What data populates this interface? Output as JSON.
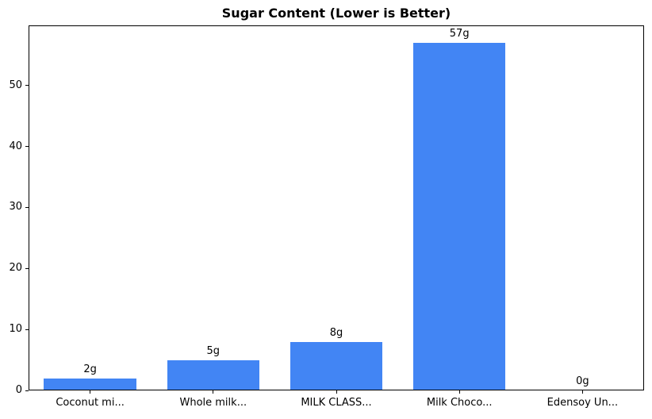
{
  "chart_data": {
    "type": "bar",
    "title": "Sugar Content (Lower is Better)",
    "categories": [
      "Coconut mi...",
      "Whole milk...",
      "MILK CLASS...",
      "Milk Choco...",
      "Edensoy Un..."
    ],
    "values": [
      2,
      5,
      8,
      57,
      0
    ],
    "bar_labels": [
      "2g",
      "5g",
      "8g",
      "57g",
      "0g"
    ],
    "xlabel": "",
    "ylabel": "",
    "yticks": [
      0,
      10,
      20,
      30,
      40,
      50
    ],
    "ylim": [
      0,
      59.85
    ],
    "grid": false,
    "legend": false,
    "bar_color": "#4285F4",
    "axis_color": "#000000",
    "background_color": "#ffffff"
  }
}
